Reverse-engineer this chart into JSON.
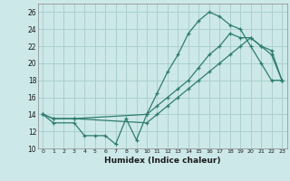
{
  "xlabel": "Humidex (Indice chaleur)",
  "bg_color": "#cde8e8",
  "grid_color": "#aacfcf",
  "line_color": "#2e7d6e",
  "xlim": [
    -0.5,
    23.5
  ],
  "ylim": [
    10,
    27
  ],
  "xticks": [
    0,
    1,
    2,
    3,
    4,
    5,
    6,
    7,
    8,
    9,
    10,
    11,
    12,
    13,
    14,
    15,
    16,
    17,
    18,
    19,
    20,
    21,
    22,
    23
  ],
  "yticks": [
    10,
    12,
    14,
    16,
    18,
    20,
    22,
    24,
    26
  ],
  "curve1_x": [
    0,
    1,
    3,
    4,
    5,
    6,
    7,
    8,
    9,
    10,
    11,
    12,
    13,
    14,
    15,
    16,
    17,
    18,
    19,
    20,
    21,
    22,
    23
  ],
  "curve1_y": [
    14,
    13,
    13,
    11.5,
    11.5,
    11.5,
    10.5,
    13.5,
    11,
    14,
    16.5,
    19,
    21,
    23.5,
    25,
    26,
    25.5,
    24.5,
    24,
    22,
    20,
    18,
    18
  ],
  "curve2_x": [
    0,
    1,
    3,
    10,
    11,
    12,
    13,
    14,
    15,
    16,
    17,
    18,
    19,
    20,
    21,
    22,
    23
  ],
  "curve2_y": [
    14,
    13.5,
    13.5,
    14,
    15,
    16,
    17,
    18,
    19.5,
    21,
    22,
    23.5,
    23,
    23,
    22,
    21.5,
    18
  ],
  "curve3_x": [
    0,
    1,
    3,
    10,
    11,
    12,
    13,
    14,
    15,
    16,
    17,
    18,
    19,
    20,
    21,
    22,
    23
  ],
  "curve3_y": [
    14,
    13.5,
    13.5,
    13,
    14,
    15,
    16,
    17,
    18,
    19,
    20,
    21,
    22,
    23,
    22,
    21,
    18
  ]
}
